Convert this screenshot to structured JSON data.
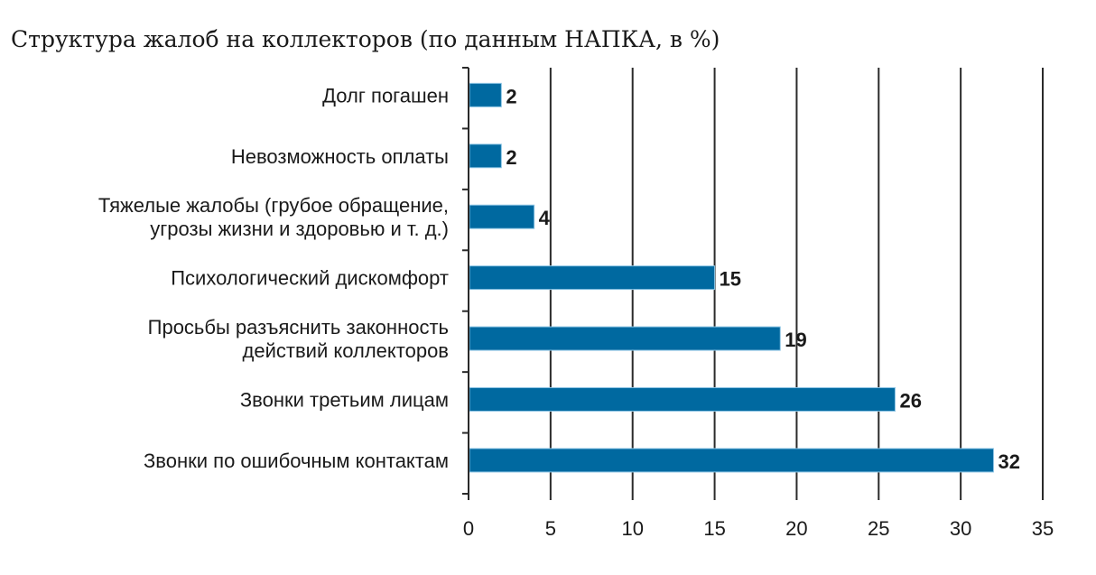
{
  "chart_data": {
    "type": "bar",
    "orientation": "horizontal",
    "title": "Структура жалоб на коллекторов (по данным НАПКА, в %)",
    "categories": [
      [
        "Долг погашен"
      ],
      [
        "Невозможность оплаты"
      ],
      [
        "Тяжелые жалобы (грубое обращение,",
        "угрозы жизни и здоровью и т. д.)"
      ],
      [
        "Психологический дискомфорт"
      ],
      [
        "Просьбы разъяснить законность",
        "действий коллекторов"
      ],
      [
        "Звонки третьим лицам"
      ],
      [
        "Звонки по ошибочным контактам"
      ]
    ],
    "values": [
      2,
      2,
      4,
      15,
      19,
      26,
      32
    ],
    "xlim": [
      0,
      35
    ],
    "xticks": [
      0,
      5,
      10,
      15,
      20,
      25,
      30,
      35
    ],
    "grid": true,
    "xlabel": "",
    "ylabel": "",
    "bar_color": "#0069a0"
  }
}
